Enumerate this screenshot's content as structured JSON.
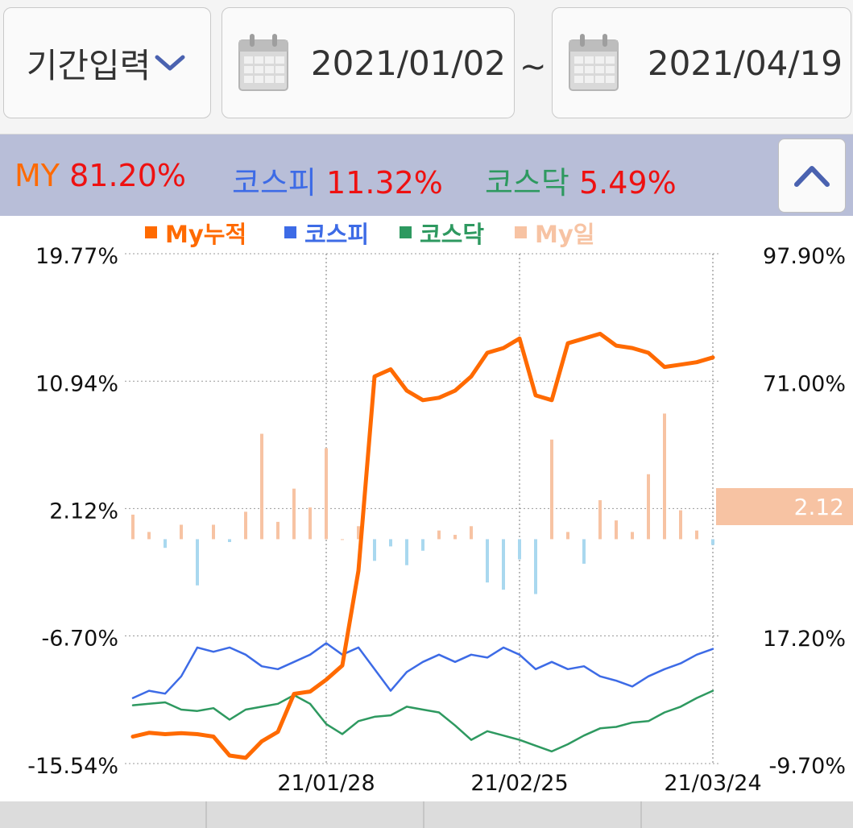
{
  "toolbar": {
    "period_label": "기간입력",
    "start_date": "2021/01/02",
    "separator": "~",
    "end_date": "2021/04/19"
  },
  "summary": {
    "my_label": "MY",
    "my_value": "81.20%",
    "kospi_label": "코스피",
    "kospi_value": "11.32%",
    "kosdaq_label": "코스닥",
    "kosdaq_value": "5.49%"
  },
  "colors": {
    "my": "#ff6a00",
    "kospi": "#3d6be6",
    "kosdaq": "#2e9960",
    "my_daily_pos": "#f7c3a3",
    "my_daily_neg": "#a9d8ef",
    "value_red": "#ee1111",
    "summary_bg": "#b8bed8"
  },
  "chart_data": {
    "type": "line+bar",
    "legend": {
      "placement": "top",
      "items": [
        {
          "name": "My누적",
          "color": "#ff6a00"
        },
        {
          "name": "코스피",
          "color": "#3d6be6"
        },
        {
          "name": "코스닥",
          "color": "#2e9960"
        },
        {
          "name": "My일",
          "color": "#f7c3a3"
        }
      ]
    },
    "left_axis": {
      "ticks": [
        "19.77%",
        "10.94%",
        "2.12%",
        "-6.70%",
        "-15.54%"
      ],
      "range": [
        -15.54,
        19.77
      ]
    },
    "right_axis": {
      "ticks": [
        "97.90%",
        "71.00%",
        "17.20%",
        "-9.70%"
      ],
      "range": [
        -9.7,
        97.9
      ]
    },
    "x_ticks": [
      {
        "label": "21/01/28",
        "index": 12
      },
      {
        "label": "21/02/25",
        "index": 24
      },
      {
        "label": "21/03/24",
        "index": 36
      }
    ],
    "current_value_label": "2.12",
    "series": [
      {
        "name": "My누적",
        "axis": "right",
        "values": [
          -4.0,
          -3.2,
          -3.5,
          -3.3,
          -3.5,
          -4.0,
          -8.0,
          -8.5,
          -5.0,
          -3.0,
          5.0,
          5.5,
          8.0,
          11.0,
          31.0,
          72.0,
          73.5,
          69.0,
          67.0,
          67.5,
          69.0,
          72.0,
          77.0,
          78.0,
          80.0,
          68.0,
          67.0,
          79.0,
          80.0,
          81.0,
          78.5,
          78.0,
          77.0,
          74.0,
          74.5,
          75.0,
          76.0
        ]
      },
      {
        "name": "코스피",
        "axis": "left",
        "values": [
          -11.0,
          -10.5,
          -10.7,
          -9.5,
          -7.5,
          -7.8,
          -7.5,
          -8.0,
          -8.8,
          -9.0,
          -8.5,
          -8.0,
          -7.2,
          -8.0,
          -7.5,
          -9.0,
          -10.5,
          -9.2,
          -8.5,
          -8.0,
          -8.5,
          -8.0,
          -8.2,
          -7.5,
          -8.0,
          -9.0,
          -8.5,
          -9.0,
          -8.8,
          -9.5,
          -9.8,
          -10.2,
          -9.5,
          -9.0,
          -8.6,
          -8.0,
          -7.6
        ]
      },
      {
        "name": "코스닥",
        "axis": "left",
        "values": [
          -11.5,
          -11.4,
          -11.3,
          -11.8,
          -11.9,
          -11.7,
          -12.5,
          -11.8,
          -11.6,
          -11.4,
          -10.8,
          -11.4,
          -12.8,
          -13.5,
          -12.6,
          -12.3,
          -12.2,
          -11.6,
          -11.8,
          -12.0,
          -12.9,
          -13.9,
          -13.3,
          -13.6,
          -13.9,
          -14.3,
          -14.7,
          -14.2,
          -13.6,
          -13.1,
          -13.0,
          -12.7,
          -12.6,
          -12.0,
          -11.6,
          -11.0,
          -10.5
        ]
      },
      {
        "name": "My일",
        "axis": "left",
        "type": "bar",
        "values": [
          1.7,
          0.5,
          -0.6,
          1.0,
          -3.2,
          1.0,
          -0.2,
          1.9,
          7.3,
          1.2,
          3.5,
          2.2,
          6.3,
          0,
          0.9,
          -1.5,
          -0.5,
          -1.8,
          -0.8,
          0.6,
          0.3,
          0.9,
          -3.0,
          -3.5,
          -1.4,
          -3.8,
          6.9,
          0.5,
          -1.7,
          2.7,
          1.3,
          0.5,
          4.5,
          8.7,
          2.0,
          0.6,
          -0.4
        ]
      }
    ]
  }
}
